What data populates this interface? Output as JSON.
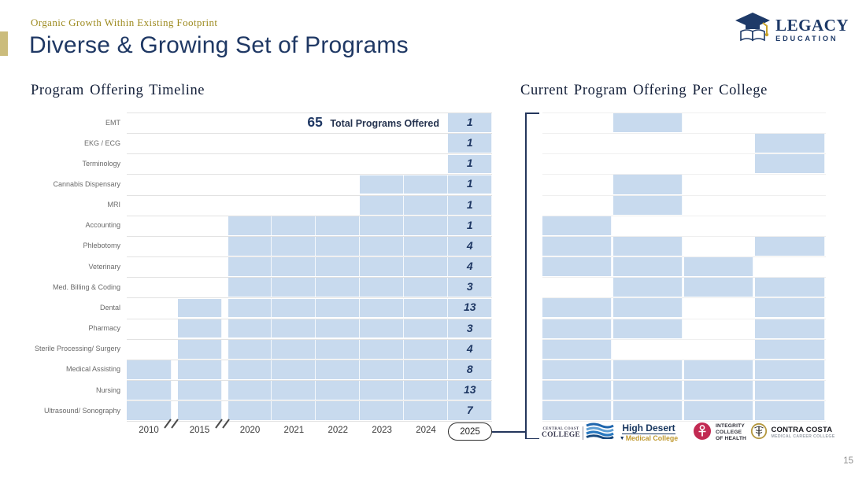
{
  "slide": {
    "eyebrow": "Organic Growth Within Existing Footprint",
    "title": "Diverse & Growing Set of Programs",
    "page_number": "15"
  },
  "brand": {
    "name": "LEGACY",
    "sub": "EDUCATION"
  },
  "left_panel": {
    "heading": "Program Offering Timeline",
    "total_number": "65",
    "total_label": "Total Programs Offered"
  },
  "right_panel": {
    "heading": "Current Program Offering Per College"
  },
  "colleges": [
    {
      "line1": "CENTRAL COAST",
      "line2": "COLLEGE"
    },
    {
      "line1": "High Desert",
      "line2": "Medical College"
    },
    {
      "line1": "INTEGRITY",
      "line2": "COLLEGE",
      "line3": "OF HEALTH"
    },
    {
      "line1": "CONTRA COSTA",
      "line2": "MEDICAL CAREER COLLEGE"
    }
  ],
  "colors": {
    "bar_blue": "#c8daee",
    "navy": "#1f3864",
    "accent_gold": "#cbbc7c",
    "eyebrow_gold": "#9d8a1f"
  },
  "chart_data": [
    {
      "type": "bar",
      "title": "Program Offering Timeline",
      "orientation": "horizontal-timeline",
      "x_ticks": [
        "2010",
        "2015",
        "2020",
        "2021",
        "2022",
        "2023",
        "2024",
        "2025"
      ],
      "axis_breaks": [
        "between 2010 and 2015",
        "between 2015 and 2020"
      ],
      "highlighted_tick": "2025",
      "total_programs": 65,
      "rows": [
        {
          "program": "EMT",
          "start_year": "2025",
          "end_year": "2025",
          "count": 1
        },
        {
          "program": "EKG / ECG",
          "start_year": "2025",
          "end_year": "2025",
          "count": 1
        },
        {
          "program": "Terminology",
          "start_year": "2025",
          "end_year": "2025",
          "count": 1
        },
        {
          "program": "Cannabis Dispensary",
          "start_year": "2023",
          "end_year": "2025",
          "count": 1
        },
        {
          "program": "MRI",
          "start_year": "2023",
          "end_year": "2025",
          "count": 1
        },
        {
          "program": "Accounting",
          "start_year": "2020",
          "end_year": "2025",
          "count": 1
        },
        {
          "program": "Phlebotomy",
          "start_year": "2020",
          "end_year": "2025",
          "count": 4
        },
        {
          "program": "Veterinary",
          "start_year": "2020",
          "end_year": "2025",
          "count": 4
        },
        {
          "program": "Med. Billing & Coding",
          "start_year": "2020",
          "end_year": "2025",
          "count": 3
        },
        {
          "program": "Dental",
          "start_year": "2015",
          "end_year": "2025",
          "count": 13
        },
        {
          "program": "Pharmacy",
          "start_year": "2015",
          "end_year": "2025",
          "count": 3
        },
        {
          "program": "Sterile Processing/ Surgery",
          "start_year": "2015",
          "end_year": "2025",
          "count": 4
        },
        {
          "program": "Medical Assisting",
          "start_year": "2010",
          "end_year": "2025",
          "count": 8
        },
        {
          "program": "Nursing",
          "start_year": "2010",
          "end_year": "2025",
          "count": 13
        },
        {
          "program": "Ultrasound/ Sonography",
          "start_year": "2010",
          "end_year": "2025",
          "count": 7
        }
      ]
    },
    {
      "type": "heatmap",
      "title": "Current Program Offering Per College",
      "columns": [
        "Central Coast College",
        "High Desert Medical College",
        "Integrity College of Health",
        "Contra Costa Medical Career College"
      ],
      "rows": [
        {
          "program": "EMT",
          "offered": [
            0,
            1,
            0,
            0
          ]
        },
        {
          "program": "EKG / ECG",
          "offered": [
            0,
            0,
            0,
            1
          ]
        },
        {
          "program": "Terminology",
          "offered": [
            0,
            0,
            0,
            1
          ]
        },
        {
          "program": "Cannabis Dispensary",
          "offered": [
            0,
            1,
            0,
            0
          ]
        },
        {
          "program": "MRI",
          "offered": [
            0,
            1,
            0,
            0
          ]
        },
        {
          "program": "Accounting",
          "offered": [
            1,
            0,
            0,
            0
          ]
        },
        {
          "program": "Phlebotomy",
          "offered": [
            1,
            1,
            0,
            1
          ]
        },
        {
          "program": "Veterinary",
          "offered": [
            1,
            1,
            1,
            0
          ]
        },
        {
          "program": "Med. Billing & Coding",
          "offered": [
            0,
            1,
            1,
            1
          ]
        },
        {
          "program": "Dental",
          "offered": [
            1,
            1,
            0,
            1
          ]
        },
        {
          "program": "Pharmacy",
          "offered": [
            1,
            1,
            0,
            1
          ]
        },
        {
          "program": "Sterile Processing/ Surgery",
          "offered": [
            1,
            0,
            0,
            1
          ]
        },
        {
          "program": "Medical Assisting",
          "offered": [
            1,
            1,
            1,
            1
          ]
        },
        {
          "program": "Nursing",
          "offered": [
            1,
            1,
            1,
            1
          ]
        },
        {
          "program": "Ultrasound/ Sonography",
          "offered": [
            1,
            1,
            1,
            1
          ]
        }
      ]
    }
  ]
}
